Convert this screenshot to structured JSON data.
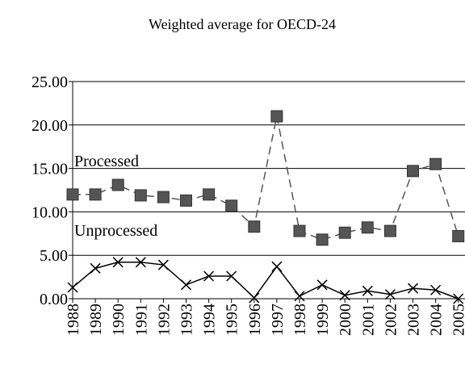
{
  "chart_data": {
    "type": "line",
    "title": "Weighted average for OECD-24",
    "categories": [
      "1988",
      "1989",
      "1990",
      "1991",
      "1992",
      "1993",
      "1994",
      "1995",
      "1996",
      "1997",
      "1998",
      "1999",
      "2000",
      "2001",
      "2002",
      "2003",
      "2004",
      "2005"
    ],
    "series": [
      {
        "name": "Processed",
        "color": "#555555",
        "dashed": true,
        "marker": "square",
        "values": [
          12.0,
          12.0,
          13.1,
          11.9,
          11.7,
          11.3,
          12.0,
          10.7,
          8.3,
          21.0,
          7.8,
          6.8,
          7.6,
          8.2,
          7.8,
          14.7,
          15.5,
          7.2
        ]
      },
      {
        "name": "Unprocessed",
        "color": "#000000",
        "dashed": false,
        "marker": "x",
        "values": [
          1.3,
          3.5,
          4.2,
          4.2,
          3.9,
          1.6,
          2.6,
          2.6,
          0.1,
          3.7,
          0.3,
          1.6,
          0.4,
          0.9,
          0.5,
          1.2,
          1.0,
          0.0
        ]
      }
    ],
    "ylim": [
      0,
      25
    ],
    "yticks": [
      {
        "value": 0,
        "label": "0.00"
      },
      {
        "value": 5,
        "label": "5.00"
      },
      {
        "value": 10,
        "label": "10.00"
      },
      {
        "value": 15,
        "label": "15.00"
      },
      {
        "value": 20,
        "label": "20.00"
      },
      {
        "value": 25,
        "label": "25.00"
      }
    ],
    "grid": true
  }
}
